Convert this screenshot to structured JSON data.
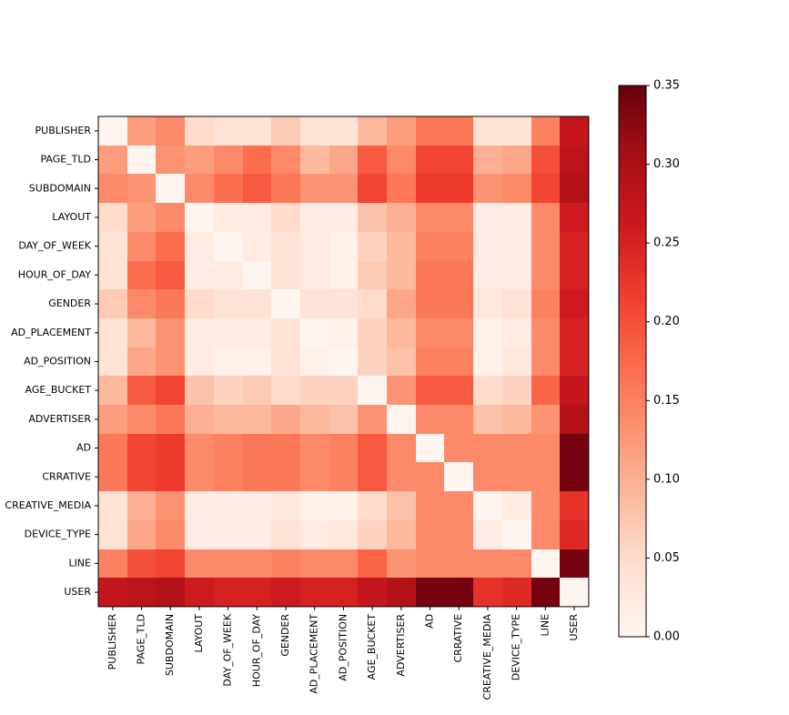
{
  "chart_data": {
    "type": "heatmap",
    "title": "",
    "xlabel": "",
    "ylabel": "",
    "colormap": "Reds",
    "vmin": 0.0,
    "vmax": 0.35,
    "colorbar_ticks": [
      0.0,
      0.05,
      0.1,
      0.15,
      0.2,
      0.25,
      0.3,
      0.35
    ],
    "colorbar_tick_labels": [
      "0.00",
      "0.05",
      "0.10",
      "0.15",
      "0.20",
      "0.25",
      "0.30",
      "0.35"
    ],
    "labels": [
      "PUBLISHER",
      "PAGE_TLD",
      "SUBDOMAIN",
      "LAYOUT",
      "DAY_OF_WEEK",
      "HOUR_OF_DAY",
      "GENDER",
      "AD_PLACEMENT",
      "AD_POSITION",
      "AGE_BUCKET",
      "ADVERTISER",
      "AD",
      "CRRATIVE",
      "CREATIVE_MEDIA",
      "DEVICE_TYPE",
      "LINE",
      "USER"
    ],
    "matrix": [
      [
        0.0,
        0.12,
        0.14,
        0.05,
        0.04,
        0.04,
        0.07,
        0.04,
        0.04,
        0.09,
        0.12,
        0.16,
        0.16,
        0.04,
        0.04,
        0.15,
        0.27
      ],
      [
        0.12,
        0.0,
        0.13,
        0.12,
        0.14,
        0.17,
        0.14,
        0.09,
        0.11,
        0.19,
        0.14,
        0.21,
        0.21,
        0.1,
        0.11,
        0.2,
        0.28
      ],
      [
        0.14,
        0.13,
        0.0,
        0.14,
        0.17,
        0.19,
        0.16,
        0.13,
        0.13,
        0.21,
        0.16,
        0.22,
        0.22,
        0.13,
        0.14,
        0.21,
        0.29
      ],
      [
        0.05,
        0.12,
        0.14,
        0.0,
        0.02,
        0.02,
        0.05,
        0.02,
        0.02,
        0.08,
        0.1,
        0.14,
        0.14,
        0.02,
        0.02,
        0.14,
        0.26
      ],
      [
        0.04,
        0.14,
        0.17,
        0.02,
        0.0,
        0.02,
        0.04,
        0.02,
        0.01,
        0.06,
        0.09,
        0.15,
        0.15,
        0.02,
        0.02,
        0.14,
        0.25
      ],
      [
        0.04,
        0.17,
        0.19,
        0.02,
        0.02,
        0.0,
        0.04,
        0.02,
        0.01,
        0.07,
        0.09,
        0.16,
        0.16,
        0.02,
        0.02,
        0.14,
        0.25
      ],
      [
        0.07,
        0.14,
        0.16,
        0.05,
        0.04,
        0.04,
        0.0,
        0.04,
        0.04,
        0.05,
        0.11,
        0.16,
        0.16,
        0.03,
        0.04,
        0.15,
        0.26
      ],
      [
        0.04,
        0.09,
        0.13,
        0.02,
        0.02,
        0.02,
        0.04,
        0.0,
        0.01,
        0.06,
        0.09,
        0.14,
        0.14,
        0.01,
        0.02,
        0.14,
        0.25
      ],
      [
        0.04,
        0.11,
        0.13,
        0.02,
        0.01,
        0.01,
        0.04,
        0.01,
        0.0,
        0.06,
        0.08,
        0.15,
        0.15,
        0.01,
        0.03,
        0.14,
        0.25
      ],
      [
        0.09,
        0.19,
        0.21,
        0.08,
        0.06,
        0.07,
        0.05,
        0.06,
        0.06,
        0.0,
        0.13,
        0.19,
        0.19,
        0.05,
        0.06,
        0.18,
        0.27
      ],
      [
        0.12,
        0.14,
        0.16,
        0.1,
        0.09,
        0.09,
        0.11,
        0.09,
        0.08,
        0.13,
        0.0,
        0.14,
        0.14,
        0.08,
        0.09,
        0.13,
        0.29
      ],
      [
        0.16,
        0.21,
        0.22,
        0.14,
        0.15,
        0.16,
        0.16,
        0.14,
        0.15,
        0.19,
        0.14,
        0.0,
        0.14,
        0.14,
        0.14,
        0.14,
        0.34
      ],
      [
        0.16,
        0.21,
        0.22,
        0.14,
        0.15,
        0.16,
        0.16,
        0.14,
        0.15,
        0.19,
        0.14,
        0.14,
        0.0,
        0.14,
        0.14,
        0.14,
        0.34
      ],
      [
        0.04,
        0.1,
        0.13,
        0.02,
        0.02,
        0.02,
        0.03,
        0.01,
        0.01,
        0.05,
        0.08,
        0.14,
        0.14,
        0.0,
        0.02,
        0.14,
        0.23
      ],
      [
        0.04,
        0.11,
        0.14,
        0.02,
        0.02,
        0.02,
        0.04,
        0.02,
        0.03,
        0.06,
        0.09,
        0.14,
        0.14,
        0.02,
        0.0,
        0.14,
        0.24
      ],
      [
        0.15,
        0.2,
        0.21,
        0.14,
        0.14,
        0.14,
        0.15,
        0.14,
        0.14,
        0.18,
        0.13,
        0.14,
        0.14,
        0.14,
        0.14,
        0.0,
        0.34
      ],
      [
        0.27,
        0.28,
        0.29,
        0.26,
        0.25,
        0.25,
        0.26,
        0.25,
        0.25,
        0.27,
        0.29,
        0.34,
        0.34,
        0.23,
        0.24,
        0.34,
        0.0
      ]
    ]
  }
}
